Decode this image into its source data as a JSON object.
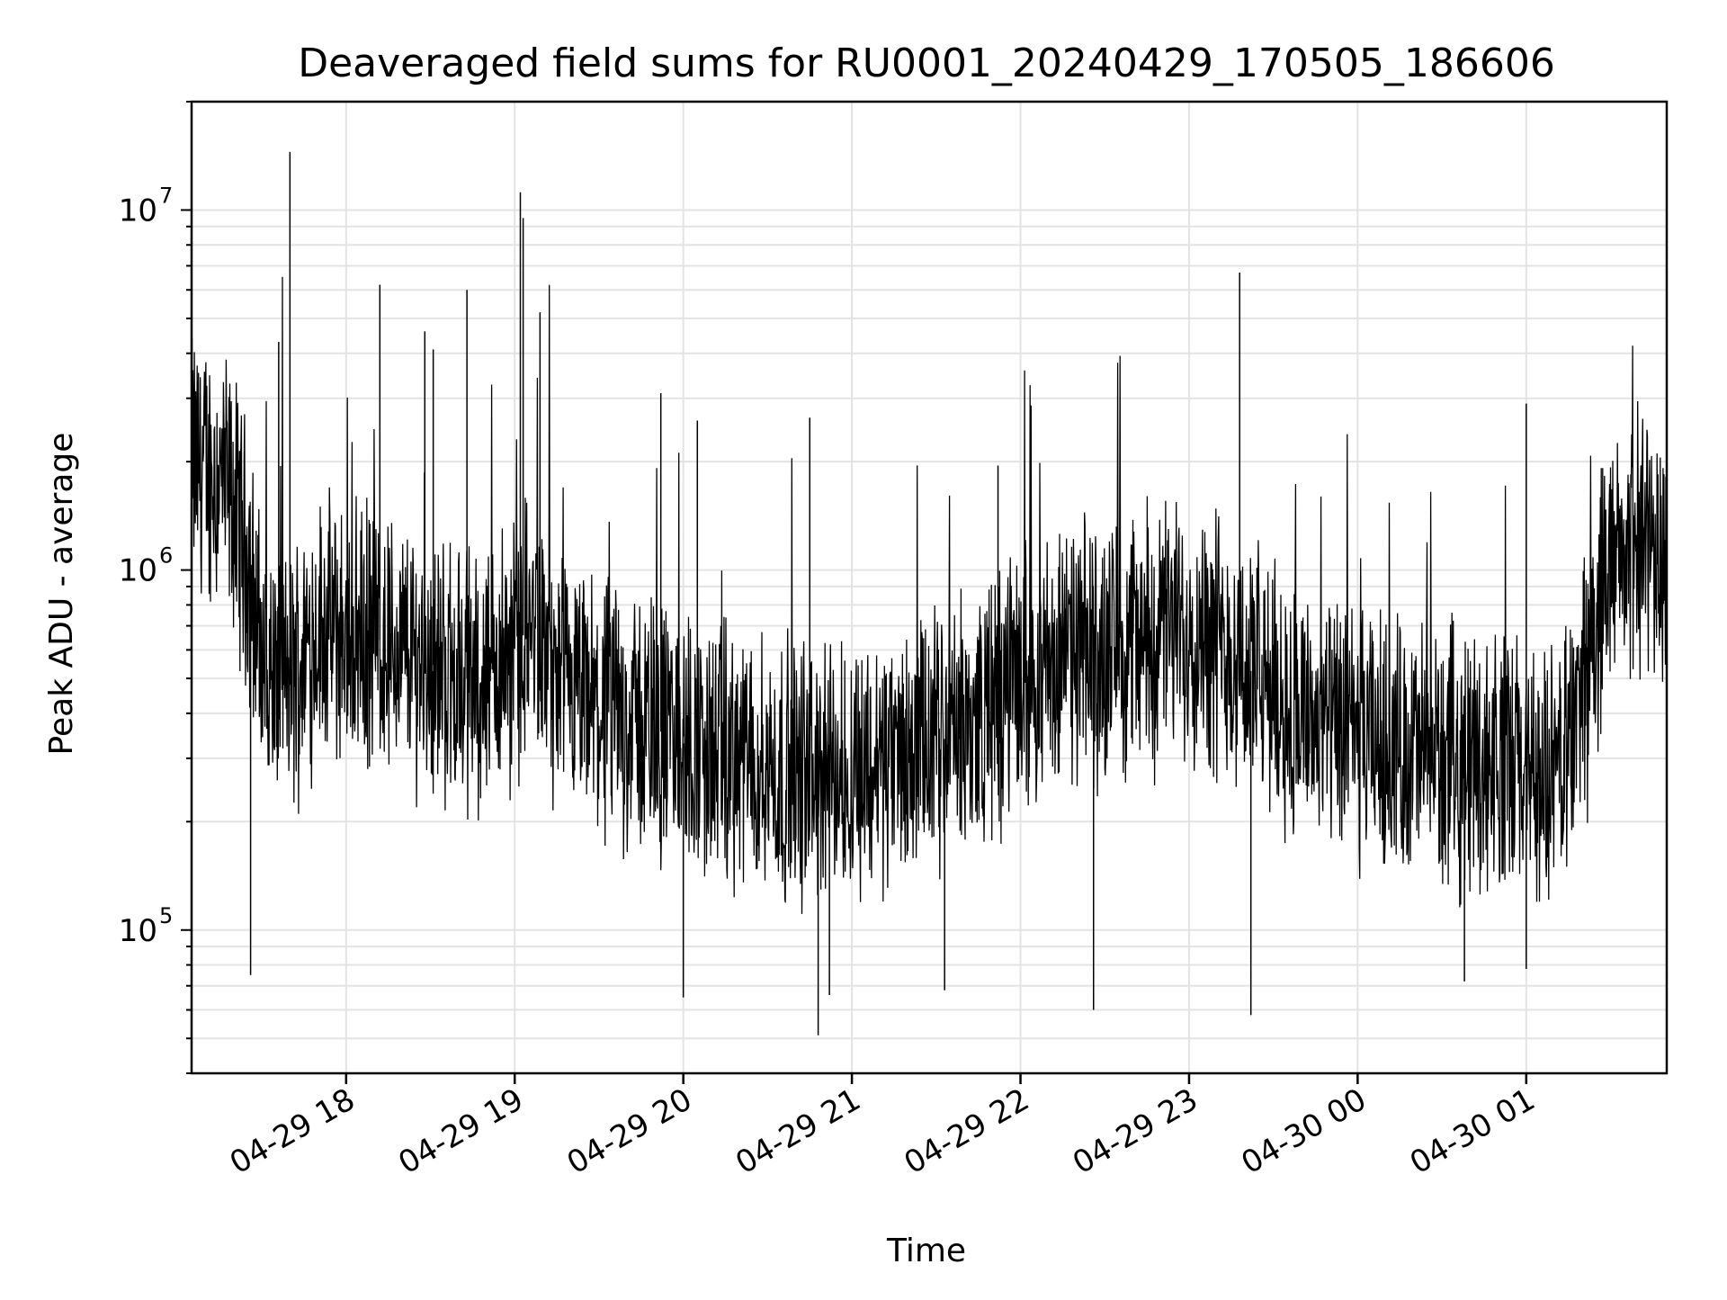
{
  "chart_data": {
    "type": "line",
    "title": "Deaveraged field sums for RU0001_20240429_170505_186606",
    "xlabel": "Time",
    "ylabel": "Peak ADU - average",
    "xlim": [
      "2024-04-29 17:05",
      "2024-04-30 01:50"
    ],
    "ylim": [
      40000,
      20000000
    ],
    "yscale": "log",
    "grid": true,
    "x_ticks": [
      {
        "value": "2024-04-29 18:00",
        "label": "04-29 18"
      },
      {
        "value": "2024-04-29 19:00",
        "label": "04-29 19"
      },
      {
        "value": "2024-04-29 20:00",
        "label": "04-29 20"
      },
      {
        "value": "2024-04-29 21:00",
        "label": "04-29 21"
      },
      {
        "value": "2024-04-29 22:00",
        "label": "04-29 22"
      },
      {
        "value": "2024-04-29 23:00",
        "label": "04-29 23"
      },
      {
        "value": "2024-04-30 00:00",
        "label": "04-30 00"
      },
      {
        "value": "2024-04-30 01:00",
        "label": "04-30 01"
      }
    ],
    "y_ticks": [
      {
        "value": 100000,
        "base": "10",
        "exp": "5"
      },
      {
        "value": 1000000,
        "base": "10",
        "exp": "6"
      },
      {
        "value": 10000000,
        "base": "10",
        "exp": "7"
      }
    ],
    "series": [
      {
        "color": "#000000",
        "x": [
          "2024-04-29 17:05",
          "2024-04-29 17:15",
          "2024-04-29 17:20",
          "2024-04-29 17:25",
          "2024-04-29 17:30",
          "2024-04-29 17:35",
          "2024-04-29 17:40",
          "2024-04-29 17:45",
          "2024-04-29 17:50",
          "2024-04-29 18:00",
          "2024-04-29 18:10",
          "2024-04-29 18:20",
          "2024-04-29 18:30",
          "2024-04-29 18:40",
          "2024-04-29 18:50",
          "2024-04-29 19:00",
          "2024-04-29 19:05",
          "2024-04-29 19:10",
          "2024-04-29 19:15",
          "2024-04-29 19:30",
          "2024-04-29 19:45",
          "2024-04-29 20:00",
          "2024-04-29 20:15",
          "2024-04-29 20:30",
          "2024-04-29 20:45",
          "2024-04-29 21:00",
          "2024-04-29 21:15",
          "2024-04-29 21:30",
          "2024-04-29 21:45",
          "2024-04-29 22:00",
          "2024-04-29 22:15",
          "2024-04-29 22:30",
          "2024-04-29 22:45",
          "2024-04-29 23:00",
          "2024-04-29 23:15",
          "2024-04-29 23:30",
          "2024-04-29 23:45",
          "2024-04-30 00:00",
          "2024-04-30 00:15",
          "2024-04-30 00:30",
          "2024-04-30 00:45",
          "2024-04-30 01:00",
          "2024-04-30 01:10",
          "2024-04-30 01:15",
          "2024-04-30 01:20",
          "2024-04-30 01:30",
          "2024-04-30 01:40",
          "2024-04-30 01:50"
        ],
        "y": [
          2000000,
          1800000,
          1500000,
          1100000,
          550000,
          500000,
          480000,
          600000,
          700000,
          650000,
          650000,
          600000,
          550000,
          500000,
          500000,
          600000,
          700000,
          600000,
          450000,
          400000,
          380000,
          330000,
          300000,
          280000,
          270000,
          280000,
          300000,
          330000,
          380000,
          500000,
          560000,
          600000,
          650000,
          700000,
          600000,
          450000,
          380000,
          330000,
          320000,
          300000,
          300000,
          280000,
          250000,
          350000,
          450000,
          1000000,
          1200000,
          1150000
        ]
      }
    ],
    "spikes": [
      {
        "x": "2024-04-29 17:40",
        "y": 14500000
      },
      {
        "x": "2024-04-29 17:36",
        "y": 4300000
      },
      {
        "x": "2024-04-29 18:12",
        "y": 6200000
      },
      {
        "x": "2024-04-29 18:28",
        "y": 4600000
      },
      {
        "x": "2024-04-29 18:31",
        "y": 4100000
      },
      {
        "x": "2024-04-29 18:43",
        "y": 6000000
      },
      {
        "x": "2024-04-29 19:02",
        "y": 11200000
      },
      {
        "x": "2024-04-29 19:03",
        "y": 9500000
      },
      {
        "x": "2024-04-29 19:09",
        "y": 5200000
      },
      {
        "x": "2024-04-29 19:52",
        "y": 3100000
      },
      {
        "x": "2024-04-29 20:05",
        "y": 2600000
      },
      {
        "x": "2024-04-29 20:45",
        "y": 2650000
      },
      {
        "x": "2024-04-29 21:52",
        "y": 1950000
      },
      {
        "x": "2024-04-29 23:18",
        "y": 6700000
      },
      {
        "x": "2024-04-30 01:00",
        "y": 2900000
      },
      {
        "x": "2024-04-29 17:26",
        "y": 75000
      },
      {
        "x": "2024-04-29 20:48",
        "y": 51000
      },
      {
        "x": "2024-04-29 20:52",
        "y": 66000
      },
      {
        "x": "2024-04-29 20:00",
        "y": 65000
      },
      {
        "x": "2024-04-29 22:26",
        "y": 60000
      },
      {
        "x": "2024-04-29 23:22",
        "y": 58000
      },
      {
        "x": "2024-04-29 21:33",
        "y": 68000
      },
      {
        "x": "2024-04-30 00:38",
        "y": 72000
      },
      {
        "x": "2024-04-30 01:00",
        "y": 78000
      }
    ]
  }
}
